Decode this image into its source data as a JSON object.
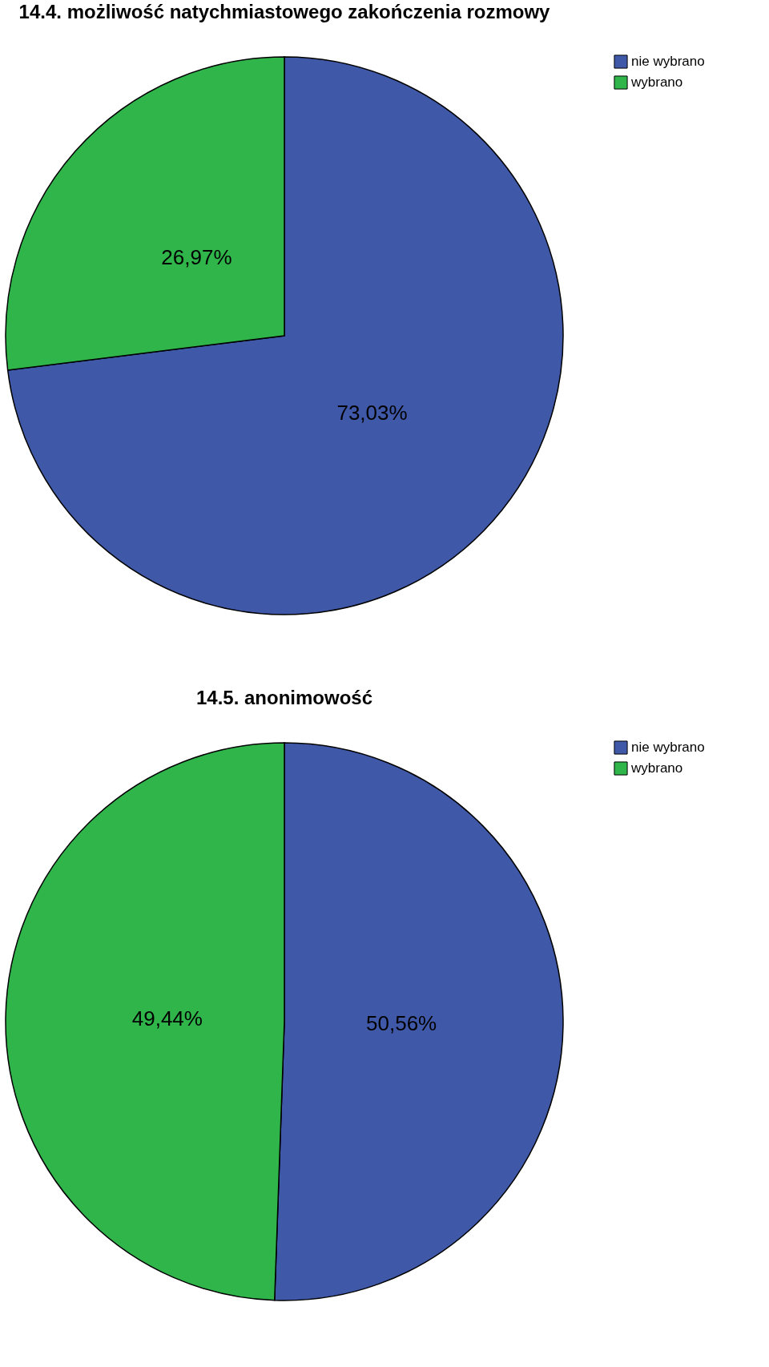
{
  "chart_data": [
    {
      "type": "pie",
      "title": "14.4. możliwość natychmiastowego zakończenia rozmowy",
      "categories": [
        "nie wybrano",
        "wybrano"
      ],
      "values": [
        73.03,
        26.97
      ],
      "colors": [
        "#3f58a8",
        "#2fb54a"
      ],
      "value_labels": [
        "73,03%",
        "26,97%"
      ],
      "legend": "top right"
    },
    {
      "type": "pie",
      "title": "14.5. anonimowość",
      "categories": [
        "nie wybrano",
        "wybrano"
      ],
      "values": [
        50.56,
        49.44
      ],
      "colors": [
        "#3f58a8",
        "#2fb54a"
      ],
      "value_labels": [
        "50,56%",
        "49,44%"
      ],
      "legend": "top right"
    }
  ]
}
